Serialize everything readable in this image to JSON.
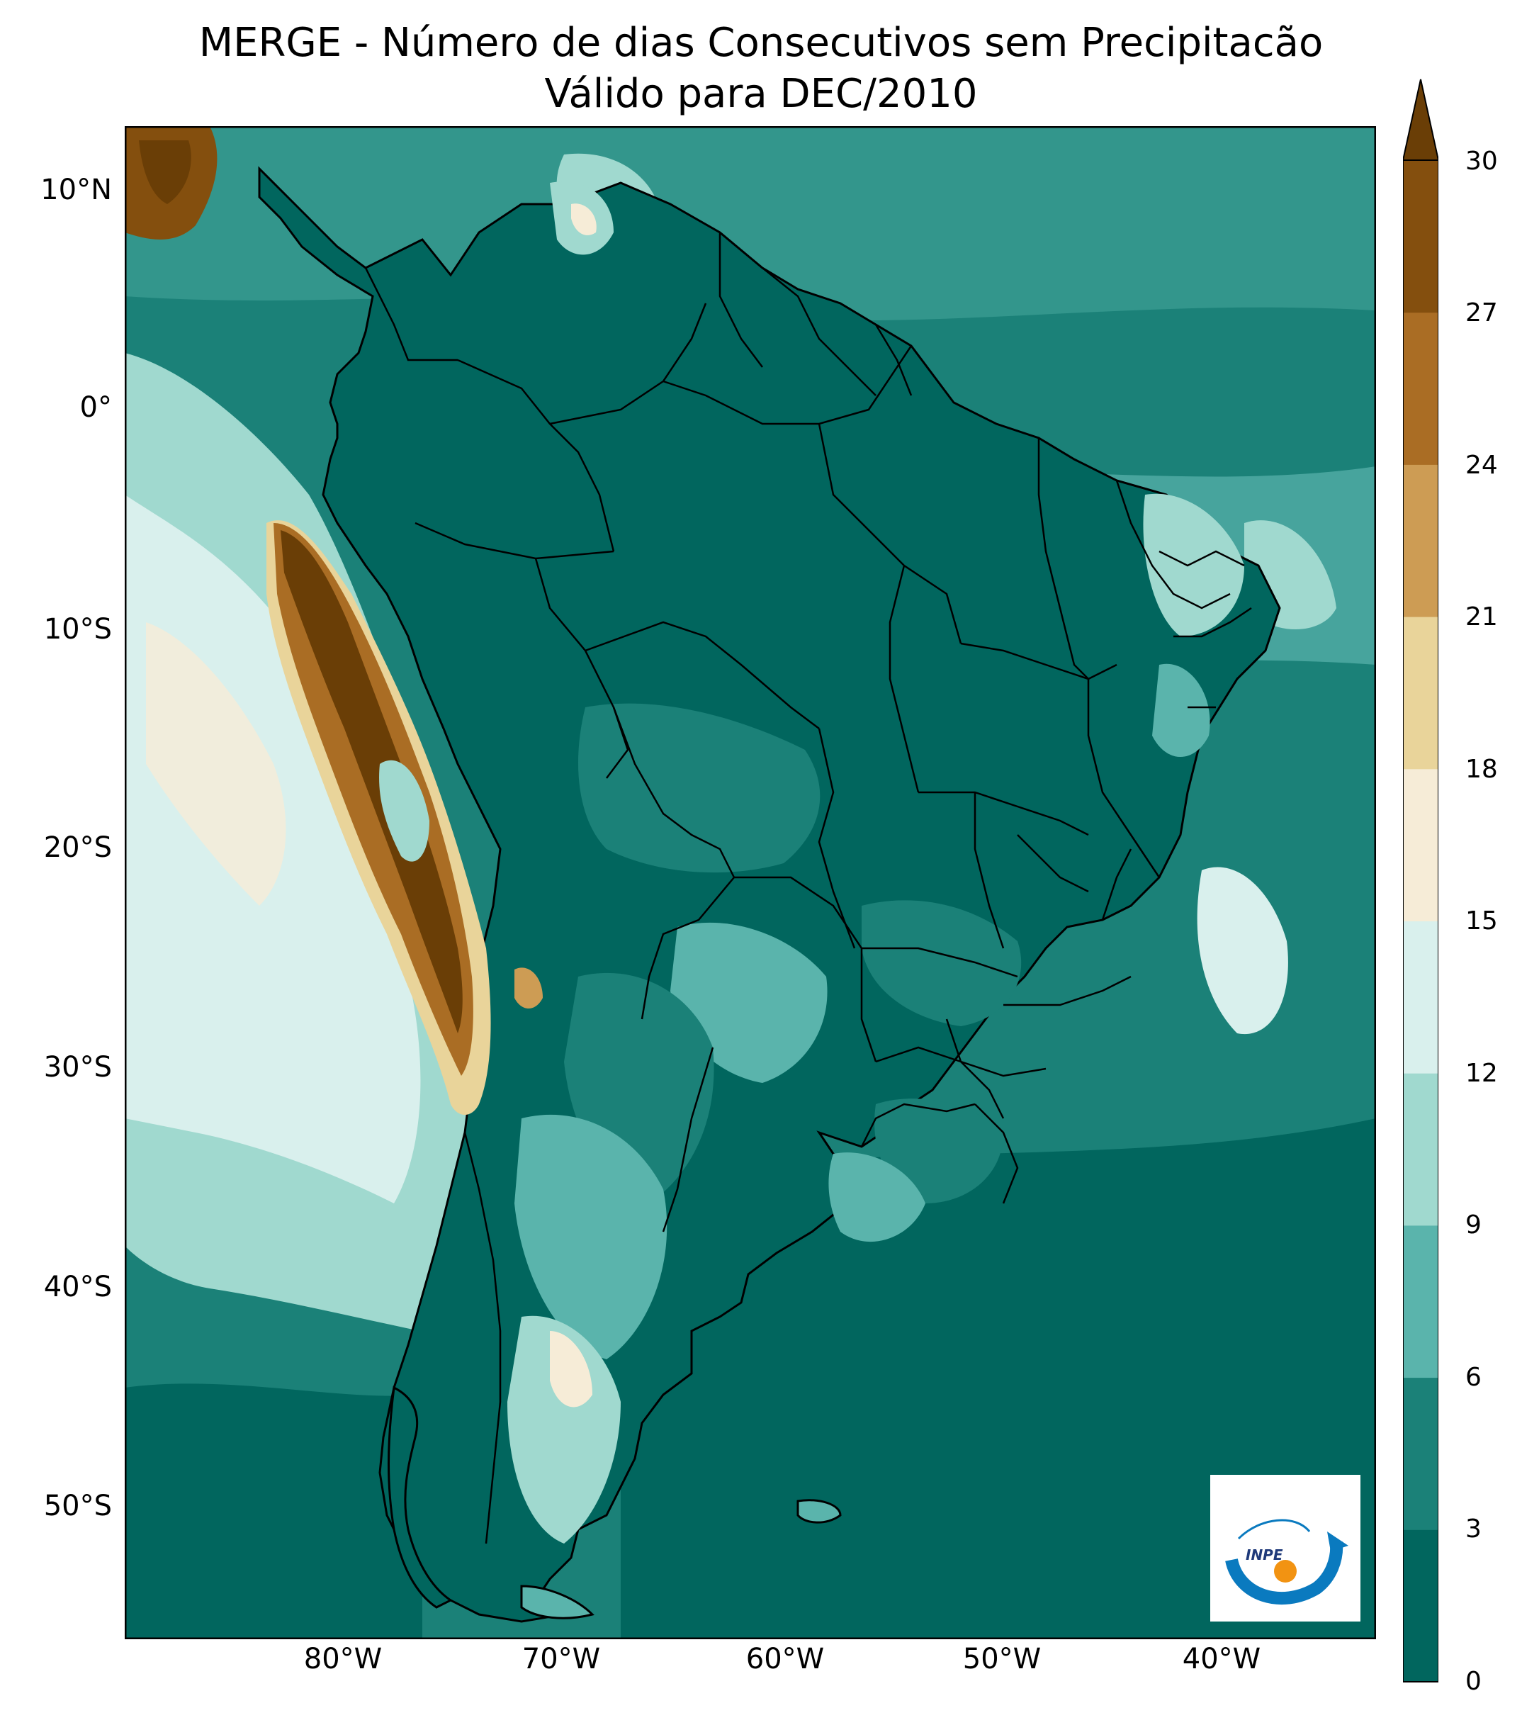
{
  "title_line1": "MERGE - Número de dias Consecutivos sem Precipitacão",
  "title_line2": "Válido para DEC/2010",
  "lat_ticks": [
    "10°N",
    "0°",
    "10°S",
    "20°S",
    "30°S",
    "40°S",
    "50°S"
  ],
  "lon_ticks": [
    "80°W",
    "70°W",
    "60°W",
    "50°W",
    "40°W"
  ],
  "colorbar": {
    "ticks": [
      "0",
      "3",
      "6",
      "9",
      "12",
      "15",
      "18",
      "21",
      "24",
      "27",
      "30"
    ],
    "colors": [
      "#01665e",
      "#1b8178",
      "#5ab4ac",
      "#a0d9cf",
      "#d9f0ed",
      "#f6ecd7",
      "#e9d49a",
      "#cd9c54",
      "#aa6d24",
      "#844f0e",
      "#6a3e06"
    ],
    "extend": "max"
  },
  "map": {
    "ocean_color": "#1b8178",
    "land_base_color": "#01665e",
    "border_color": "#000000"
  },
  "logo_text": "INPE"
}
